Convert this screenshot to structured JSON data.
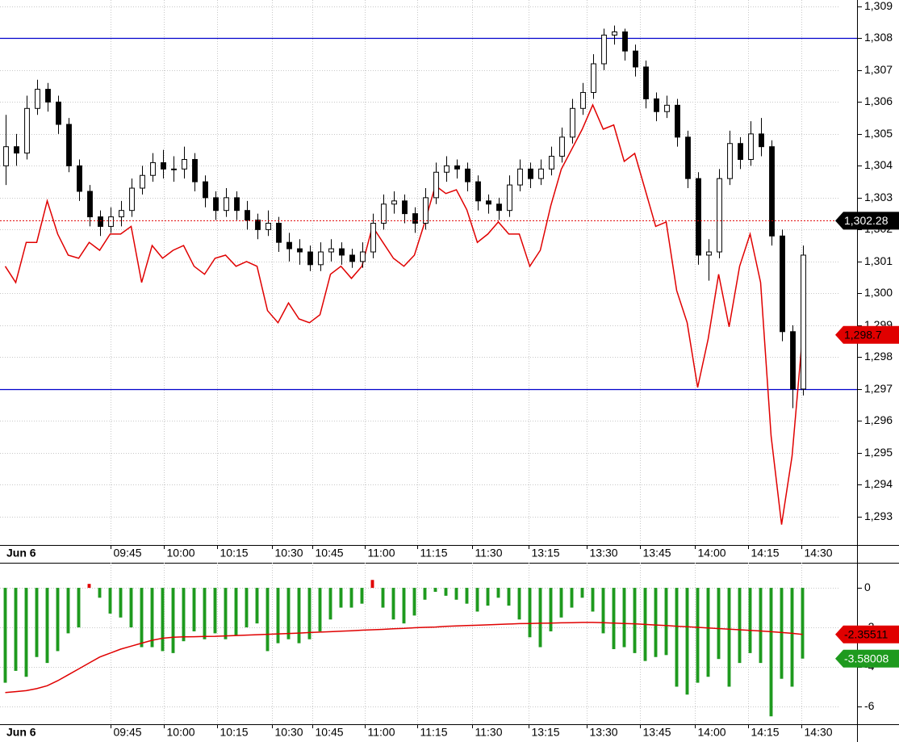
{
  "chart_data": [
    {
      "type": "candlestick",
      "date_label": "Jun 6",
      "xlim": [
        0,
        80
      ],
      "xticks": [
        {
          "value": 10.5,
          "label": "09:45"
        },
        {
          "value": 15.6,
          "label": "10:00"
        },
        {
          "value": 20.7,
          "label": "10:15"
        },
        {
          "value": 25.9,
          "label": "10:30"
        },
        {
          "value": 29.8,
          "label": "10:45"
        },
        {
          "value": 34.8,
          "label": "11:00"
        },
        {
          "value": 39.8,
          "label": "11:15"
        },
        {
          "value": 45,
          "label": "11:30"
        },
        {
          "value": 50.4,
          "label": "13:15"
        },
        {
          "value": 55.9,
          "label": "13:30"
        },
        {
          "value": 61,
          "label": "13:45"
        },
        {
          "value": 66.2,
          "label": "14:00"
        },
        {
          "value": 71.3,
          "label": "14:15"
        },
        {
          "value": 76.4,
          "label": "14:30"
        }
      ],
      "ylim": [
        1292.11,
        1309.2
      ],
      "yticks": [
        {
          "value": 1293,
          "label": "1,293"
        },
        {
          "value": 1294,
          "label": "1,294"
        },
        {
          "value": 1295,
          "label": "1,295"
        },
        {
          "value": 1296,
          "label": "1,296"
        },
        {
          "value": 1297,
          "label": "1,297"
        },
        {
          "value": 1298,
          "label": "1,298"
        },
        {
          "value": 1299,
          "label": "1,299"
        },
        {
          "value": 1300,
          "label": "1,300"
        },
        {
          "value": 1301,
          "label": "1,301"
        },
        {
          "value": 1302,
          "label": "1,302"
        },
        {
          "value": 1303,
          "label": "1,303"
        },
        {
          "value": 1304,
          "label": "1,304"
        },
        {
          "value": 1305,
          "label": "1,305"
        },
        {
          "value": 1306,
          "label": "1,306"
        },
        {
          "value": 1307,
          "label": "1,307"
        },
        {
          "value": 1308,
          "label": "1,308"
        },
        {
          "value": 1309,
          "label": "1,309"
        }
      ],
      "grid": true,
      "up_color": "#ffffff",
      "down_color": "#000000",
      "open": [
        1304.0,
        1304.6,
        1304.4,
        1305.8,
        1306.4,
        1306.0,
        1305.3,
        1304.0,
        1303.2,
        1302.4,
        1302.1,
        1302.4,
        1302.6,
        1303.3,
        1303.7,
        1304.1,
        1303.9,
        1303.9,
        1304.2,
        1303.5,
        1303.0,
        1302.6,
        1303.0,
        1302.6,
        1302.3,
        1302.0,
        1302.2,
        1301.6,
        1301.4,
        1301.3,
        1300.9,
        1301.3,
        1301.4,
        1301.2,
        1301.0,
        1301.3,
        1302.2,
        1302.8,
        1302.9,
        1302.5,
        1302.2,
        1303.0,
        1303.8,
        1304.0,
        1303.9,
        1303.5,
        1302.9,
        1302.8,
        1302.6,
        1303.4,
        1303.9,
        1303.6,
        1303.9,
        1304.3,
        1304.9,
        1305.8,
        1306.3,
        1307.2,
        1308.1,
        1308.2,
        1307.6,
        1307.1,
        1306.1,
        1305.7,
        1305.9,
        1304.9,
        1303.6,
        1301.2,
        1301.3,
        1303.6,
        1304.7,
        1304.2,
        1305.0,
        1304.6,
        1301.8,
        1298.8,
        1297.0
      ],
      "high": [
        1305.6,
        1305.0,
        1306.2,
        1306.7,
        1306.6,
        1306.2,
        1305.5,
        1304.2,
        1303.4,
        1302.6,
        1302.7,
        1302.9,
        1303.6,
        1304.0,
        1304.4,
        1304.5,
        1304.3,
        1304.6,
        1304.4,
        1303.7,
        1303.2,
        1303.3,
        1303.2,
        1302.9,
        1302.5,
        1302.6,
        1302.4,
        1301.9,
        1301.7,
        1301.5,
        1301.6,
        1301.7,
        1301.6,
        1301.4,
        1301.6,
        1302.5,
        1303.1,
        1303.2,
        1303.1,
        1302.7,
        1303.3,
        1304.1,
        1304.3,
        1304.2,
        1304.1,
        1303.7,
        1303.1,
        1303.0,
        1303.7,
        1304.2,
        1304.1,
        1304.2,
        1304.6,
        1305.2,
        1306.1,
        1306.6,
        1307.5,
        1308.3,
        1308.4,
        1308.3,
        1307.8,
        1307.3,
        1306.3,
        1306.2,
        1306.1,
        1305.1,
        1303.8,
        1301.7,
        1303.9,
        1305.1,
        1304.9,
        1305.4,
        1305.5,
        1304.8,
        1302.0,
        1299.0,
        1301.5
      ],
      "low": [
        1303.4,
        1304.0,
        1304.2,
        1305.6,
        1305.7,
        1305.0,
        1303.8,
        1302.9,
        1302.1,
        1301.8,
        1301.9,
        1302.1,
        1302.4,
        1303.1,
        1303.5,
        1303.6,
        1303.5,
        1303.6,
        1303.2,
        1302.7,
        1302.3,
        1302.4,
        1302.3,
        1302.0,
        1301.7,
        1301.8,
        1301.3,
        1301.0,
        1300.9,
        1300.7,
        1300.7,
        1301.0,
        1300.9,
        1300.8,
        1300.8,
        1301.1,
        1302.0,
        1302.5,
        1302.2,
        1301.9,
        1302.0,
        1302.8,
        1303.5,
        1303.6,
        1303.2,
        1302.6,
        1302.5,
        1302.3,
        1302.4,
        1303.2,
        1303.3,
        1303.4,
        1303.7,
        1304.1,
        1304.7,
        1305.6,
        1306.1,
        1307.0,
        1307.8,
        1307.3,
        1306.8,
        1305.8,
        1305.4,
        1305.5,
        1304.6,
        1303.3,
        1300.9,
        1300.4,
        1301.1,
        1303.4,
        1303.9,
        1304.0,
        1304.3,
        1301.5,
        1298.5,
        1296.4,
        1296.8
      ],
      "close": [
        1304.6,
        1304.4,
        1305.8,
        1306.4,
        1306.0,
        1305.3,
        1304.0,
        1303.2,
        1302.4,
        1302.1,
        1302.4,
        1302.6,
        1303.3,
        1303.7,
        1304.1,
        1303.9,
        1303.9,
        1304.2,
        1303.5,
        1303.0,
        1302.6,
        1303.0,
        1302.6,
        1302.3,
        1302.0,
        1302.2,
        1301.6,
        1301.4,
        1301.3,
        1300.9,
        1301.3,
        1301.4,
        1301.2,
        1301.0,
        1301.3,
        1302.2,
        1302.8,
        1302.9,
        1302.5,
        1302.2,
        1303.0,
        1303.8,
        1304.0,
        1303.9,
        1303.5,
        1302.9,
        1302.8,
        1302.6,
        1303.4,
        1303.9,
        1303.6,
        1303.9,
        1304.3,
        1304.9,
        1305.8,
        1306.3,
        1307.2,
        1308.1,
        1308.2,
        1307.6,
        1307.1,
        1306.1,
        1305.7,
        1305.9,
        1304.9,
        1303.6,
        1301.2,
        1301.3,
        1303.6,
        1304.7,
        1304.2,
        1305.0,
        1304.6,
        1301.8,
        1298.8,
        1297.0,
        1301.2
      ],
      "line": {
        "color": "#e00000",
        "values": [
          1300.85,
          1300.34,
          1301.6,
          1301.6,
          1302.9,
          1301.86,
          1301.2,
          1301.1,
          1301.6,
          1301.35,
          1301.86,
          1301.86,
          1302.1,
          1300.34,
          1301.5,
          1301.1,
          1301.35,
          1301.5,
          1300.85,
          1300.6,
          1301.1,
          1301.2,
          1300.85,
          1301.0,
          1300.85,
          1299.46,
          1299.08,
          1299.7,
          1299.2,
          1299.08,
          1299.33,
          1300.6,
          1300.85,
          1300.47,
          1300.85,
          1302.1,
          1301.6,
          1301.1,
          1300.85,
          1301.2,
          1302.24,
          1303.38,
          1303.13,
          1303.25,
          1302.62,
          1301.6,
          1301.86,
          1302.24,
          1301.86,
          1301.86,
          1300.85,
          1301.35,
          1302.75,
          1303.89,
          1304.52,
          1305.15,
          1305.91,
          1305.15,
          1305.28,
          1304.14,
          1304.39,
          1303.25,
          1302.1,
          1302.24,
          1300.09,
          1299.08,
          1297.05,
          1298.57,
          1300.6,
          1298.95,
          1300.85,
          1301.86,
          1300.34,
          1295.53,
          1292.75,
          1294.9,
          1298.7
        ]
      },
      "hlines": [
        {
          "value": 1308,
          "color": "#0000cc"
        },
        {
          "value": 1297,
          "color": "#0000cc"
        }
      ],
      "markers": [
        {
          "value": 1302.28,
          "label": "1,302.28",
          "color": "#000000",
          "text_color": "#ffffff",
          "dotted_color": "#e00000"
        },
        {
          "value": 1298.7,
          "label": "1,298.7",
          "color": "#e00000",
          "text_color": "#000000"
        }
      ]
    },
    {
      "type": "bar",
      "ylim": [
        -6.9,
        1.27
      ],
      "yticks": [
        0,
        -2,
        -4,
        -6
      ],
      "grid": true,
      "color": "#1e9a1e",
      "up_color": "#e00000",
      "values": [
        -4.8,
        -4.2,
        -4.5,
        -3.5,
        -3.8,
        -3.2,
        -2.3,
        -2.0,
        0.2,
        -0.5,
        -1.3,
        -1.5,
        -2.0,
        -3.0,
        -3.0,
        -3.2,
        -3.3,
        -2.7,
        -2.2,
        -2.6,
        -2.3,
        -2.6,
        -2.4,
        -2.0,
        -1.8,
        -3.2,
        -2.8,
        -2.6,
        -2.8,
        -2.6,
        -2.2,
        -1.6,
        -1.0,
        -1.0,
        -0.8,
        0.4,
        -1.0,
        -1.6,
        -1.8,
        -1.4,
        -0.6,
        -0.2,
        -0.4,
        -0.6,
        -0.8,
        -1.2,
        -0.9,
        -0.5,
        -0.9,
        -1.6,
        -2.5,
        -3.0,
        -2.2,
        -1.5,
        -1.0,
        -0.5,
        -1.2,
        -2.3,
        -3.1,
        -3.0,
        -3.3,
        -3.7,
        -3.5,
        -3.4,
        -5.0,
        -5.4,
        -4.8,
        -4.5,
        -3.6,
        -5.0,
        -3.8,
        -3.3,
        -3.8,
        -6.5,
        -4.6,
        -5.0,
        -3.58008
      ],
      "line": {
        "color": "#e00000",
        "values": [
          -5.3,
          -5.25,
          -5.2,
          -5.1,
          -4.95,
          -4.7,
          -4.4,
          -4.1,
          -3.8,
          -3.5,
          -3.3,
          -3.1,
          -2.95,
          -2.8,
          -2.65,
          -2.55,
          -2.5,
          -2.48,
          -2.47,
          -2.46,
          -2.45,
          -2.43,
          -2.41,
          -2.39,
          -2.37,
          -2.35,
          -2.33,
          -2.31,
          -2.29,
          -2.26,
          -2.24,
          -2.22,
          -2.19,
          -2.17,
          -2.14,
          -2.12,
          -2.1,
          -2.07,
          -2.05,
          -2.02,
          -2.0,
          -1.98,
          -1.95,
          -1.93,
          -1.91,
          -1.89,
          -1.87,
          -1.85,
          -1.83,
          -1.81,
          -1.8,
          -1.79,
          -1.78,
          -1.77,
          -1.76,
          -1.75,
          -1.75,
          -1.76,
          -1.78,
          -1.8,
          -1.82,
          -1.85,
          -1.88,
          -1.91,
          -1.94,
          -1.97,
          -2.0,
          -2.03,
          -2.06,
          -2.09,
          -2.12,
          -2.15,
          -2.18,
          -2.22,
          -2.26,
          -2.3,
          -2.35511
        ]
      },
      "markers": [
        {
          "value": -2.35511,
          "color": "#e00000",
          "text_color": "#000000"
        },
        {
          "value": -3.58008,
          "color": "#1e9a1e",
          "text_color": "#ffffff"
        }
      ]
    }
  ]
}
